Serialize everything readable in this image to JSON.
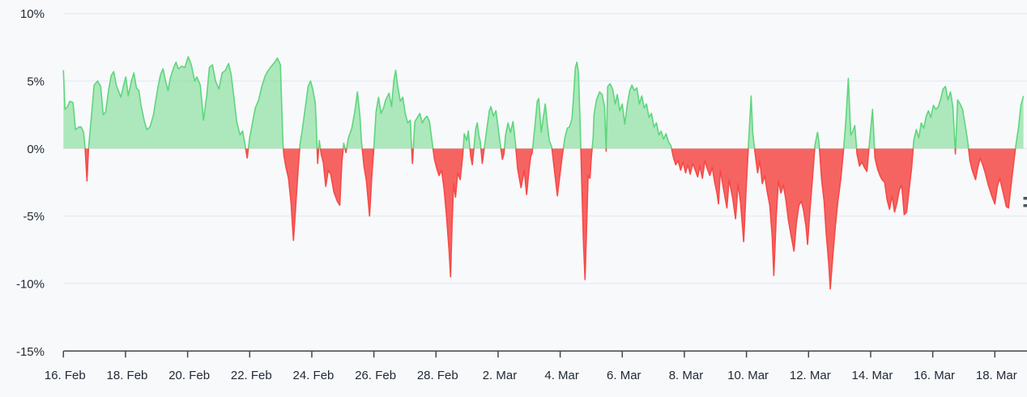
{
  "theme": {
    "background": "#f8f9fb",
    "grid_color": "#e7edf4",
    "axis_line_color": "#3d474f",
    "label_color": "#212b36",
    "positive_line": "#5ed67c",
    "positive_fill": "rgba(95,215,125,0.5)",
    "negative_line": "#f64a47",
    "negative_fill": "rgba(246,74,71,0.85)"
  },
  "chart_data": {
    "type": "area",
    "title": "",
    "xlabel": "",
    "ylabel": "",
    "legend": "none",
    "grid": "horizontal",
    "baseline": 0,
    "ylim": [
      -15,
      10
    ],
    "xlim_days": [
      0,
      31.05
    ],
    "x_unit": "days since 16. Feb",
    "y_unit": "percent",
    "series_note": "single series; values above 0% filled green, below 0% filled red",
    "yticks": [
      {
        "v": 10,
        "label": "10%"
      },
      {
        "v": 5,
        "label": "5%"
      },
      {
        "v": 0,
        "label": "0%"
      },
      {
        "v": -5,
        "label": "-5%"
      },
      {
        "v": -10,
        "label": "-10%"
      },
      {
        "v": -15,
        "label": "-15%"
      }
    ],
    "xticks": [
      {
        "d": 0,
        "label": "16. Feb"
      },
      {
        "d": 2,
        "label": "18. Feb"
      },
      {
        "d": 4,
        "label": "20. Feb"
      },
      {
        "d": 6,
        "label": "22. Feb"
      },
      {
        "d": 8,
        "label": "24. Feb"
      },
      {
        "d": 10,
        "label": "26. Feb"
      },
      {
        "d": 12,
        "label": "28. Feb"
      },
      {
        "d": 14,
        "label": "2. Mar"
      },
      {
        "d": 16,
        "label": "4. Mar"
      },
      {
        "d": 18,
        "label": "6. Mar"
      },
      {
        "d": 20,
        "label": "8. Mar"
      },
      {
        "d": 22,
        "label": "10. Mar"
      },
      {
        "d": 24,
        "label": "12. Mar"
      },
      {
        "d": 26,
        "label": "14. Mar"
      },
      {
        "d": 28,
        "label": "16. Mar"
      },
      {
        "d": 30,
        "label": "18. Mar"
      }
    ],
    "points": [
      [
        0.0,
        5.8
      ],
      [
        0.05,
        2.9
      ],
      [
        0.13,
        3.1
      ],
      [
        0.21,
        3.5
      ],
      [
        0.31,
        3.4
      ],
      [
        0.39,
        1.4
      ],
      [
        0.5,
        1.6
      ],
      [
        0.57,
        1.6
      ],
      [
        0.65,
        1.2
      ],
      [
        0.7,
        0.0
      ],
      [
        0.76,
        -2.4
      ],
      [
        0.81,
        0.0
      ],
      [
        0.91,
        2.6
      ],
      [
        0.99,
        4.7
      ],
      [
        1.1,
        5.0
      ],
      [
        1.2,
        4.6
      ],
      [
        1.28,
        2.5
      ],
      [
        1.36,
        2.7
      ],
      [
        1.46,
        4.4
      ],
      [
        1.54,
        5.4
      ],
      [
        1.62,
        5.7
      ],
      [
        1.7,
        4.7
      ],
      [
        1.77,
        4.3
      ],
      [
        1.85,
        3.8
      ],
      [
        1.93,
        4.6
      ],
      [
        2.01,
        5.3
      ],
      [
        2.09,
        3.9
      ],
      [
        2.19,
        5.0
      ],
      [
        2.27,
        5.6
      ],
      [
        2.35,
        4.5
      ],
      [
        2.43,
        4.3
      ],
      [
        2.5,
        3.2
      ],
      [
        2.61,
        2.0
      ],
      [
        2.69,
        1.4
      ],
      [
        2.79,
        1.6
      ],
      [
        2.9,
        2.5
      ],
      [
        2.97,
        3.5
      ],
      [
        3.05,
        4.6
      ],
      [
        3.13,
        5.5
      ],
      [
        3.21,
        5.9
      ],
      [
        3.29,
        5.0
      ],
      [
        3.37,
        4.3
      ],
      [
        3.44,
        5.2
      ],
      [
        3.55,
        6.0
      ],
      [
        3.63,
        6.4
      ],
      [
        3.7,
        5.9
      ],
      [
        3.81,
        6.1
      ],
      [
        3.91,
        6.0
      ],
      [
        4.02,
        6.8
      ],
      [
        4.12,
        6.2
      ],
      [
        4.23,
        5.0
      ],
      [
        4.3,
        5.3
      ],
      [
        4.41,
        4.7
      ],
      [
        4.51,
        2.1
      ],
      [
        4.62,
        4.0
      ],
      [
        4.7,
        6.0
      ],
      [
        4.8,
        6.2
      ],
      [
        4.9,
        5.0
      ],
      [
        5.01,
        4.4
      ],
      [
        5.11,
        5.6
      ],
      [
        5.22,
        5.8
      ],
      [
        5.32,
        6.3
      ],
      [
        5.4,
        5.5
      ],
      [
        5.48,
        4.0
      ],
      [
        5.58,
        2.0
      ],
      [
        5.69,
        1.0
      ],
      [
        5.77,
        1.3
      ],
      [
        5.84,
        0.4
      ],
      [
        5.92,
        -0.7
      ],
      [
        6.0,
        0.8
      ],
      [
        6.08,
        1.8
      ],
      [
        6.18,
        3.0
      ],
      [
        6.29,
        3.6
      ],
      [
        6.39,
        4.6
      ],
      [
        6.5,
        5.4
      ],
      [
        6.6,
        5.8
      ],
      [
        6.7,
        6.1
      ],
      [
        6.81,
        6.4
      ],
      [
        6.89,
        6.7
      ],
      [
        6.99,
        6.2
      ],
      [
        7.07,
        0.5
      ],
      [
        7.1,
        -0.5
      ],
      [
        7.17,
        -1.4
      ],
      [
        7.25,
        -2.2
      ],
      [
        7.33,
        -4.0
      ],
      [
        7.41,
        -6.8
      ],
      [
        7.49,
        -4.0
      ],
      [
        7.57,
        -1.2
      ],
      [
        7.62,
        0.3
      ],
      [
        7.7,
        1.5
      ],
      [
        7.8,
        3.2
      ],
      [
        7.88,
        4.6
      ],
      [
        7.96,
        5.0
      ],
      [
        8.03,
        4.4
      ],
      [
        8.11,
        3.4
      ],
      [
        8.14,
        2.0
      ],
      [
        8.19,
        -1.1
      ],
      [
        8.24,
        0.6
      ],
      [
        8.3,
        -0.4
      ],
      [
        8.37,
        -1.0
      ],
      [
        8.45,
        -2.8
      ],
      [
        8.53,
        -1.6
      ],
      [
        8.61,
        -1.9
      ],
      [
        8.71,
        -3.2
      ],
      [
        8.82,
        -3.9
      ],
      [
        8.9,
        -4.2
      ],
      [
        8.97,
        -1.0
      ],
      [
        9.03,
        0.4
      ],
      [
        9.1,
        -0.3
      ],
      [
        9.18,
        0.8
      ],
      [
        9.29,
        1.5
      ],
      [
        9.39,
        2.8
      ],
      [
        9.47,
        4.2
      ],
      [
        9.55,
        2.4
      ],
      [
        9.6,
        0.5
      ],
      [
        9.68,
        -1.3
      ],
      [
        9.76,
        -2.4
      ],
      [
        9.86,
        -5.0
      ],
      [
        9.94,
        -1.8
      ],
      [
        9.99,
        -0.3
      ],
      [
        10.07,
        2.7
      ],
      [
        10.15,
        3.8
      ],
      [
        10.23,
        2.6
      ],
      [
        10.31,
        3.0
      ],
      [
        10.38,
        3.6
      ],
      [
        10.49,
        4.1
      ],
      [
        10.57,
        3.1
      ],
      [
        10.64,
        5.0
      ],
      [
        10.7,
        5.8
      ],
      [
        10.77,
        4.6
      ],
      [
        10.85,
        3.5
      ],
      [
        10.93,
        3.8
      ],
      [
        11.01,
        2.6
      ],
      [
        11.09,
        1.9
      ],
      [
        11.17,
        2.1
      ],
      [
        11.24,
        -1.1
      ],
      [
        11.32,
        2.0
      ],
      [
        11.4,
        2.3
      ],
      [
        11.48,
        2.6
      ],
      [
        11.56,
        1.9
      ],
      [
        11.63,
        2.2
      ],
      [
        11.71,
        2.4
      ],
      [
        11.79,
        2.0
      ],
      [
        11.87,
        0.6
      ],
      [
        11.95,
        -0.8
      ],
      [
        12.03,
        -1.5
      ],
      [
        12.1,
        -2.0
      ],
      [
        12.18,
        -1.6
      ],
      [
        12.26,
        -3.0
      ],
      [
        12.34,
        -5.0
      ],
      [
        12.42,
        -7.5
      ],
      [
        12.47,
        -9.5
      ],
      [
        12.52,
        -5.5
      ],
      [
        12.57,
        -2.6
      ],
      [
        12.63,
        -3.6
      ],
      [
        12.7,
        -1.8
      ],
      [
        12.78,
        -2.3
      ],
      [
        12.86,
        -0.5
      ],
      [
        12.91,
        1.1
      ],
      [
        12.99,
        0.6
      ],
      [
        13.04,
        1.3
      ],
      [
        13.12,
        -0.6
      ],
      [
        13.17,
        -1.2
      ],
      [
        13.23,
        0.2
      ],
      [
        13.28,
        1.5
      ],
      [
        13.33,
        1.9
      ],
      [
        13.38,
        1.0
      ],
      [
        13.43,
        0.5
      ],
      [
        13.49,
        -1.1
      ],
      [
        13.57,
        0.3
      ],
      [
        13.64,
        1.5
      ],
      [
        13.72,
        2.8
      ],
      [
        13.77,
        3.1
      ],
      [
        13.85,
        2.4
      ],
      [
        13.93,
        2.8
      ],
      [
        14.01,
        1.4
      ],
      [
        14.09,
        0.0
      ],
      [
        14.14,
        -0.8
      ],
      [
        14.19,
        -0.4
      ],
      [
        14.24,
        1.0
      ],
      [
        14.32,
        1.9
      ],
      [
        14.4,
        1.2
      ],
      [
        14.48,
        2.0
      ],
      [
        14.56,
        0.4
      ],
      [
        14.63,
        -1.5
      ],
      [
        14.74,
        -2.9
      ],
      [
        14.84,
        -1.6
      ],
      [
        14.92,
        -3.4
      ],
      [
        15.0,
        -1.5
      ],
      [
        15.05,
        -0.6
      ],
      [
        15.1,
        -0.3
      ],
      [
        15.18,
        1.5
      ],
      [
        15.26,
        3.5
      ],
      [
        15.31,
        3.7
      ],
      [
        15.39,
        1.2
      ],
      [
        15.47,
        2.5
      ],
      [
        15.52,
        3.3
      ],
      [
        15.6,
        1.5
      ],
      [
        15.65,
        0.6
      ],
      [
        15.73,
        0.1
      ],
      [
        15.81,
        -1.5
      ],
      [
        15.91,
        -3.5
      ],
      [
        15.99,
        -2.0
      ],
      [
        16.07,
        -0.5
      ],
      [
        16.15,
        0.8
      ],
      [
        16.23,
        1.5
      ],
      [
        16.3,
        1.6
      ],
      [
        16.38,
        2.2
      ],
      [
        16.43,
        3.8
      ],
      [
        16.49,
        6.0
      ],
      [
        16.54,
        6.4
      ],
      [
        16.59,
        5.6
      ],
      [
        16.64,
        2.0
      ],
      [
        16.7,
        -3.0
      ],
      [
        16.75,
        -7.0
      ],
      [
        16.8,
        -9.7
      ],
      [
        16.85,
        -6.0
      ],
      [
        16.9,
        -2.0
      ],
      [
        16.96,
        -2.2
      ],
      [
        17.01,
        -0.5
      ],
      [
        17.06,
        0.8
      ],
      [
        17.09,
        2.5
      ],
      [
        17.17,
        3.6
      ],
      [
        17.27,
        4.2
      ],
      [
        17.35,
        4.0
      ],
      [
        17.43,
        3.1
      ],
      [
        17.48,
        -0.2
      ],
      [
        17.53,
        4.6
      ],
      [
        17.61,
        4.8
      ],
      [
        17.69,
        4.4
      ],
      [
        17.77,
        3.3
      ],
      [
        17.84,
        4.0
      ],
      [
        17.92,
        2.8
      ],
      [
        18.0,
        3.3
      ],
      [
        18.08,
        1.8
      ],
      [
        18.16,
        3.2
      ],
      [
        18.24,
        4.3
      ],
      [
        18.31,
        4.7
      ],
      [
        18.39,
        4.3
      ],
      [
        18.47,
        4.5
      ],
      [
        18.55,
        3.3
      ],
      [
        18.63,
        3.9
      ],
      [
        18.71,
        3.0
      ],
      [
        18.78,
        3.3
      ],
      [
        18.86,
        2.3
      ],
      [
        18.94,
        2.6
      ],
      [
        19.02,
        1.6
      ],
      [
        19.1,
        1.9
      ],
      [
        19.18,
        1.0
      ],
      [
        19.25,
        1.3
      ],
      [
        19.33,
        0.7
      ],
      [
        19.41,
        1.1
      ],
      [
        19.49,
        0.5
      ],
      [
        19.57,
        0.2
      ],
      [
        19.64,
        -0.6
      ],
      [
        19.72,
        -1.2
      ],
      [
        19.8,
        -0.9
      ],
      [
        19.88,
        -1.6
      ],
      [
        19.96,
        -1.0
      ],
      [
        20.04,
        -1.8
      ],
      [
        20.11,
        -1.2
      ],
      [
        20.19,
        -1.9
      ],
      [
        20.27,
        -1.1
      ],
      [
        20.35,
        -1.6
      ],
      [
        20.43,
        -2.1
      ],
      [
        20.5,
        -1.3
      ],
      [
        20.58,
        -2.2
      ],
      [
        20.66,
        -0.9
      ],
      [
        20.74,
        -1.5
      ],
      [
        20.82,
        -2.0
      ],
      [
        20.9,
        -1.4
      ],
      [
        20.97,
        -2.4
      ],
      [
        21.05,
        -3.3
      ],
      [
        21.1,
        -4.1
      ],
      [
        21.16,
        -1.6
      ],
      [
        21.26,
        -3.0
      ],
      [
        21.37,
        -4.4
      ],
      [
        21.44,
        -2.3
      ],
      [
        21.55,
        -3.6
      ],
      [
        21.65,
        -5.2
      ],
      [
        21.73,
        -2.6
      ],
      [
        21.81,
        -4.0
      ],
      [
        21.91,
        -6.9
      ],
      [
        21.99,
        -3.0
      ],
      [
        22.07,
        0.5
      ],
      [
        22.15,
        3.9
      ],
      [
        22.2,
        1.2
      ],
      [
        22.28,
        -0.4
      ],
      [
        22.36,
        -1.8
      ],
      [
        22.43,
        -0.9
      ],
      [
        22.51,
        -2.6
      ],
      [
        22.59,
        -2.0
      ],
      [
        22.67,
        -3.2
      ],
      [
        22.75,
        -4.2
      ],
      [
        22.83,
        -6.5
      ],
      [
        22.88,
        -9.4
      ],
      [
        22.96,
        -5.0
      ],
      [
        23.03,
        -2.4
      ],
      [
        23.11,
        -3.3
      ],
      [
        23.19,
        -2.7
      ],
      [
        23.27,
        -3.8
      ],
      [
        23.35,
        -5.3
      ],
      [
        23.45,
        -6.6
      ],
      [
        23.53,
        -7.6
      ],
      [
        23.61,
        -5.5
      ],
      [
        23.69,
        -4.2
      ],
      [
        23.77,
        -3.9
      ],
      [
        23.84,
        -4.6
      ],
      [
        23.92,
        -5.8
      ],
      [
        23.97,
        -7.1
      ],
      [
        24.05,
        -4.4
      ],
      [
        24.13,
        -2.1
      ],
      [
        24.21,
        0.3
      ],
      [
        24.29,
        1.2
      ],
      [
        24.34,
        0.4
      ],
      [
        24.42,
        -2.3
      ],
      [
        24.5,
        -3.9
      ],
      [
        24.57,
        -6.3
      ],
      [
        24.65,
        -8.5
      ],
      [
        24.7,
        -10.4
      ],
      [
        24.78,
        -8.0
      ],
      [
        24.86,
        -5.8
      ],
      [
        24.94,
        -4.0
      ],
      [
        25.04,
        -2.2
      ],
      [
        25.12,
        -0.3
      ],
      [
        25.2,
        2.0
      ],
      [
        25.28,
        5.2
      ],
      [
        25.36,
        1.0
      ],
      [
        25.43,
        1.3
      ],
      [
        25.49,
        1.7
      ],
      [
        25.56,
        -0.4
      ],
      [
        25.64,
        -1.3
      ],
      [
        25.72,
        -1.0
      ],
      [
        25.8,
        -1.4
      ],
      [
        25.88,
        -1.7
      ],
      [
        25.96,
        0.4
      ],
      [
        26.06,
        2.9
      ],
      [
        26.14,
        -0.7
      ],
      [
        26.22,
        -1.5
      ],
      [
        26.3,
        -2.0
      ],
      [
        26.37,
        -2.3
      ],
      [
        26.45,
        -2.5
      ],
      [
        26.53,
        -3.8
      ],
      [
        26.61,
        -4.5
      ],
      [
        26.69,
        -3.5
      ],
      [
        26.77,
        -4.7
      ],
      [
        26.85,
        -4.0
      ],
      [
        26.92,
        -3.1
      ],
      [
        27.0,
        -2.7
      ],
      [
        27.08,
        -4.9
      ],
      [
        27.16,
        -4.7
      ],
      [
        27.24,
        -3.0
      ],
      [
        27.32,
        -1.4
      ],
      [
        27.39,
        0.6
      ],
      [
        27.47,
        1.4
      ],
      [
        27.55,
        0.8
      ],
      [
        27.63,
        1.9
      ],
      [
        27.71,
        1.5
      ],
      [
        27.79,
        2.4
      ],
      [
        27.86,
        2.8
      ],
      [
        27.94,
        2.3
      ],
      [
        28.02,
        3.2
      ],
      [
        28.1,
        2.9
      ],
      [
        28.18,
        3.1
      ],
      [
        28.26,
        3.7
      ],
      [
        28.33,
        4.4
      ],
      [
        28.41,
        4.6
      ],
      [
        28.49,
        3.6
      ],
      [
        28.57,
        4.2
      ],
      [
        28.65,
        3.1
      ],
      [
        28.73,
        -0.4
      ],
      [
        28.8,
        3.6
      ],
      [
        28.88,
        3.3
      ],
      [
        28.96,
        2.9
      ],
      [
        29.04,
        1.8
      ],
      [
        29.12,
        0.6
      ],
      [
        29.2,
        -0.9
      ],
      [
        29.27,
        -1.6
      ],
      [
        29.38,
        -2.3
      ],
      [
        29.45,
        -1.4
      ],
      [
        29.53,
        -0.7
      ],
      [
        29.61,
        -1.2
      ],
      [
        29.69,
        -1.8
      ],
      [
        29.79,
        -2.7
      ],
      [
        29.9,
        -3.5
      ],
      [
        30.0,
        -4.1
      ],
      [
        30.08,
        -2.8
      ],
      [
        30.16,
        -2.2
      ],
      [
        30.26,
        -3.2
      ],
      [
        30.37,
        -4.3
      ],
      [
        30.44,
        -4.4
      ],
      [
        30.52,
        -2.8
      ],
      [
        30.6,
        -1.2
      ],
      [
        30.68,
        0.3
      ],
      [
        30.76,
        1.5
      ],
      [
        30.84,
        3.2
      ],
      [
        30.92,
        3.9
      ]
    ],
    "clipped_right_edge_label_fragment": true
  }
}
